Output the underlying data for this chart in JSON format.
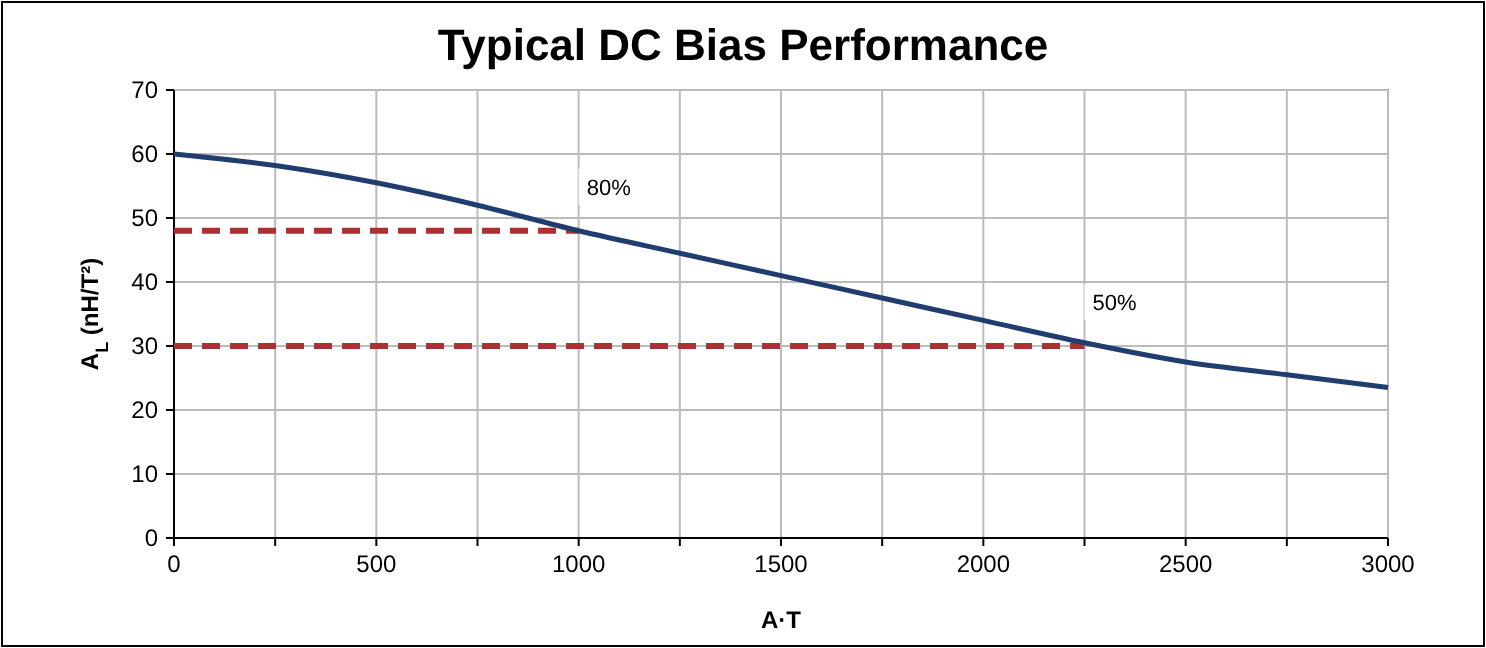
{
  "chart_data": {
    "type": "line",
    "title": "Typical DC Bias Performance",
    "xlabel": "A·T",
    "ylabel": "A$_{L}$ (nH/T²)",
    "xlim": [
      0,
      3000
    ],
    "ylim": [
      0,
      70
    ],
    "xticks": [
      0,
      {
        "value": 250,
        "label": null
      },
      500,
      {
        "value": 750,
        "label": null
      },
      1000,
      {
        "value": 1250,
        "label": null
      },
      1500,
      {
        "value": 1750,
        "label": null
      },
      2000,
      {
        "value": 2250,
        "label": null
      },
      2500,
      {
        "value": 2750,
        "label": null
      },
      3000
    ],
    "yticks": [
      0,
      10,
      20,
      30,
      40,
      50,
      60,
      70
    ],
    "grid": true,
    "series": [
      {
        "color": "#1f3d6e",
        "line_style": "solid",
        "x": [
          0,
          250,
          500,
          750,
          1000,
          1250,
          1500,
          1750,
          2000,
          2250,
          2500,
          2750,
          3000
        ],
        "values": [
          60,
          58.2,
          55.5,
          52,
          48,
          44.5,
          41,
          37.5,
          34,
          30.5,
          27.5,
          25.5,
          23.5
        ]
      },
      {
        "color": "#a83232",
        "line_style": "dashed",
        "x": [
          0,
          1000
        ],
        "values": [
          48,
          48
        ]
      },
      {
        "color": "#a83232",
        "line_style": "dashed",
        "x": [
          0,
          2250
        ],
        "values": [
          30,
          30
        ]
      }
    ],
    "annotations": [
      {
        "text": "80%",
        "x": 1000,
        "y": 48
      },
      {
        "text": "50%",
        "x": 2250,
        "y": 30
      }
    ]
  }
}
